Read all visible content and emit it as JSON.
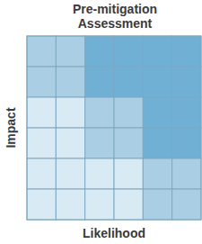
{
  "chart_data": {
    "type": "heatmap",
    "title": [
      "Pre-mitigation",
      "Assessment"
    ],
    "y_label": "Impact",
    "x_label": "Likelihood",
    "cells": [
      [
        1,
        1,
        2,
        2,
        2,
        2
      ],
      [
        1,
        1,
        2,
        2,
        2,
        2
      ],
      [
        0,
        0,
        1,
        1,
        2,
        2
      ],
      [
        0,
        0,
        1,
        1,
        2,
        2
      ],
      [
        0,
        0,
        0,
        0,
        1,
        1
      ],
      [
        0,
        0,
        0,
        0,
        1,
        1
      ]
    ],
    "colors": [
      "#d8eaf4",
      "#aacfe5",
      "#70b0d5"
    ],
    "tick_labels": false
  }
}
